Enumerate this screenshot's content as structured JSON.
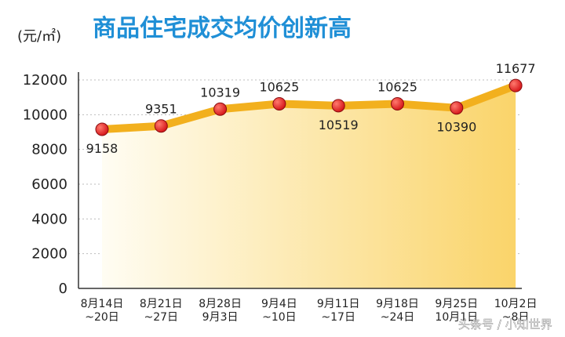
{
  "chart_data": {
    "type": "line",
    "title": "商品住宅成交均价创新高",
    "unit_label": "(元/㎡)",
    "categories": [
      [
        "8月14日",
        "~20日"
      ],
      [
        "8月21日",
        "~27日"
      ],
      [
        "8月28日",
        "9月3日"
      ],
      [
        "9月4日",
        "~10日"
      ],
      [
        "9月11日",
        "~17日"
      ],
      [
        "9月18日",
        "~24日"
      ],
      [
        "9月25日",
        "10月1日"
      ],
      [
        "10月2日",
        "~8日"
      ]
    ],
    "series": [
      {
        "values": [
          9158,
          9351,
          10319,
          10625,
          10519,
          10625,
          10390,
          11677
        ],
        "data_labels": [
          "9158",
          "9351",
          "10319",
          "10625",
          "10519",
          "10625",
          "10390",
          "11677"
        ],
        "label_position": [
          "below",
          "above",
          "above",
          "above",
          "below",
          "above",
          "below",
          "above"
        ]
      }
    ],
    "ylim": [
      0,
      12000
    ],
    "yticks": [
      0,
      2000,
      4000,
      6000,
      8000,
      10000,
      12000
    ],
    "ytick_labels": [
      "0",
      "2000",
      "4000",
      "6000",
      "8000",
      "10000",
      "12000"
    ],
    "grid": true,
    "colors": {
      "title": "#1f8fd6",
      "line": "#f2b01e",
      "marker": "#d7191c",
      "marker_highlight": "#ff7a6e",
      "area_light": "#fffdf3",
      "area_dark": "#fad46a"
    }
  },
  "watermark": "头条号 / 小知世界"
}
